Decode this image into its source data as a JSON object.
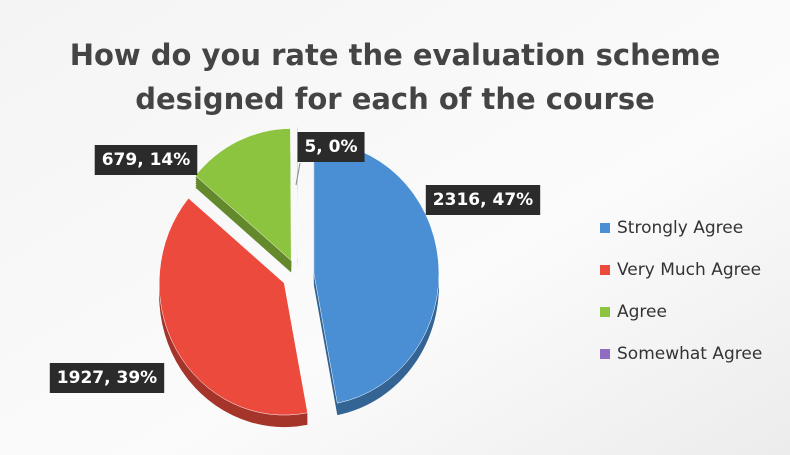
{
  "chart_data": {
    "type": "pie",
    "title": [
      "How do you rate the evaluation scheme",
      "designed for each of the course"
    ],
    "categories": [
      "Strongly Agree",
      "Very Much Agree",
      "Agree",
      "Somewhat Agree"
    ],
    "values": [
      2316,
      1927,
      679,
      5
    ],
    "value_labels": [
      "2316, 47%",
      "1927, 39%",
      "679, 14%",
      "5, 0%"
    ],
    "colors": [
      "#4a8fd3",
      "#ec4a3c",
      "#8dc43f",
      "#8e6cc0"
    ],
    "legend": "right"
  }
}
